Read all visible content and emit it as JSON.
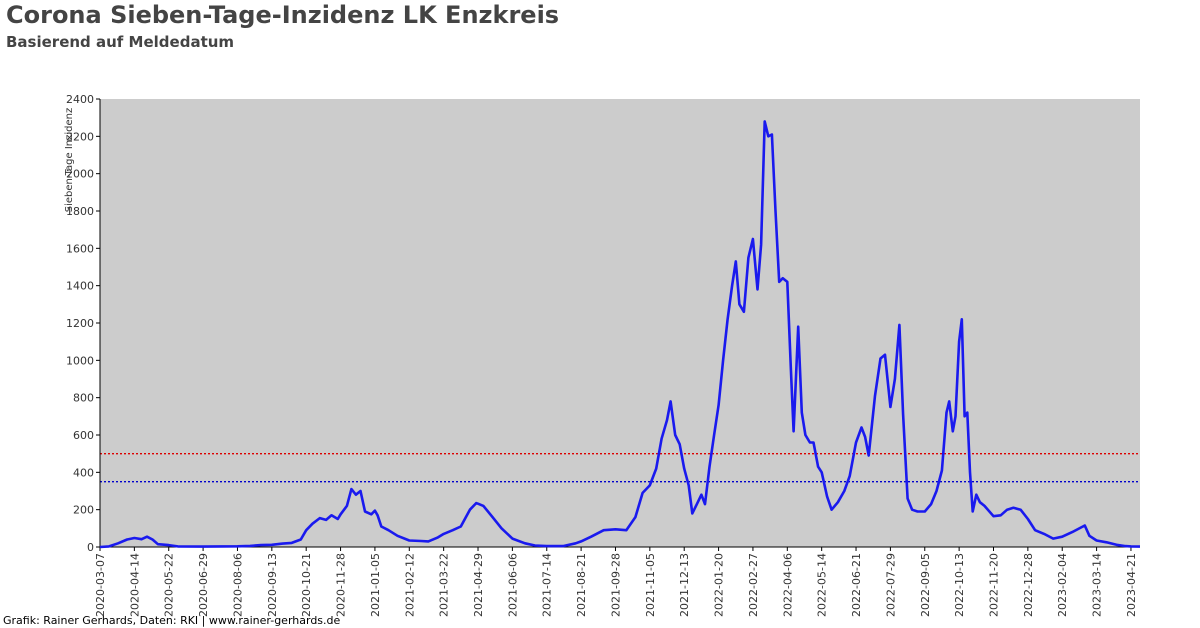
{
  "title": "Corona Sieben-Tage-Inzidenz LK Enzkreis",
  "subtitle": "Basierend auf Meldedatum",
  "footer": "Grafik: Rainer Gerhards, Daten: RKI | www.rainer-gerhards.de",
  "colors": {
    "plot_background": "#cccccc",
    "series": "#1a1aee",
    "threshold_red": "#dd0000",
    "threshold_blue": "#0000cc",
    "text": "#444444"
  },
  "chart_data": {
    "type": "line",
    "title": "Corona Sieben-Tage-Inzidenz LK Enzkreis",
    "subtitle": "Basierend auf Meldedatum",
    "xlabel": "",
    "ylabel": "Sieben-Tage Inzidenz",
    "ylim": [
      0,
      2400
    ],
    "yticks": [
      0,
      200,
      400,
      600,
      800,
      1000,
      1200,
      1400,
      1600,
      1800,
      2000,
      2200,
      2400
    ],
    "xlim": [
      "2020-03-07",
      "2023-05-01"
    ],
    "xticks": [
      "2020-03-07",
      "2020-04-14",
      "2020-05-22",
      "2020-06-29",
      "2020-08-06",
      "2020-09-13",
      "2020-10-21",
      "2020-11-28",
      "2021-01-05",
      "2021-02-12",
      "2021-03-22",
      "2021-04-29",
      "2021-06-06",
      "2021-07-14",
      "2021-08-21",
      "2021-09-28",
      "2021-11-05",
      "2021-12-13",
      "2022-01-20",
      "2022-02-27",
      "2022-04-06",
      "2022-05-14",
      "2022-06-21",
      "2022-07-29",
      "2022-09-05",
      "2022-10-13",
      "2022-11-20",
      "2022-12-28",
      "2023-02-04",
      "2023-03-14",
      "2023-04-21"
    ],
    "grid": false,
    "reference_lines": [
      {
        "y": 500,
        "color": "#dd0000"
      },
      {
        "y": 350,
        "color": "#0000cc"
      }
    ],
    "series": [
      {
        "points": [
          [
            "2020-03-07",
            0
          ],
          [
            "2020-03-17",
            3
          ],
          [
            "2020-03-27",
            20
          ],
          [
            "2020-04-06",
            40
          ],
          [
            "2020-04-14",
            48
          ],
          [
            "2020-04-22",
            42
          ],
          [
            "2020-04-28",
            55
          ],
          [
            "2020-05-04",
            40
          ],
          [
            "2020-05-10",
            15
          ],
          [
            "2020-05-22",
            10
          ],
          [
            "2020-06-01",
            3
          ],
          [
            "2020-06-29",
            2
          ],
          [
            "2020-07-20",
            3
          ],
          [
            "2020-08-06",
            4
          ],
          [
            "2020-08-20",
            6
          ],
          [
            "2020-09-01",
            10
          ],
          [
            "2020-09-13",
            12
          ],
          [
            "2020-09-25",
            18
          ],
          [
            "2020-10-05",
            22
          ],
          [
            "2020-10-15",
            40
          ],
          [
            "2020-10-21",
            90
          ],
          [
            "2020-10-28",
            125
          ],
          [
            "2020-11-05",
            155
          ],
          [
            "2020-11-12",
            145
          ],
          [
            "2020-11-18",
            170
          ],
          [
            "2020-11-25",
            150
          ],
          [
            "2020-11-28",
            175
          ],
          [
            "2020-12-05",
            220
          ],
          [
            "2020-12-10",
            310
          ],
          [
            "2020-12-15",
            280
          ],
          [
            "2020-12-20",
            300
          ],
          [
            "2020-12-25",
            190
          ],
          [
            "2021-01-01",
            175
          ],
          [
            "2021-01-05",
            195
          ],
          [
            "2021-01-08",
            170
          ],
          [
            "2021-01-12",
            110
          ],
          [
            "2021-01-20",
            90
          ],
          [
            "2021-01-30",
            60
          ],
          [
            "2021-02-12",
            35
          ],
          [
            "2021-02-25",
            32
          ],
          [
            "2021-03-05",
            30
          ],
          [
            "2021-03-15",
            50
          ],
          [
            "2021-03-22",
            70
          ],
          [
            "2021-04-01",
            90
          ],
          [
            "2021-04-10",
            110
          ],
          [
            "2021-04-20",
            200
          ],
          [
            "2021-04-27",
            235
          ],
          [
            "2021-04-29",
            232
          ],
          [
            "2021-05-05",
            220
          ],
          [
            "2021-05-15",
            160
          ],
          [
            "2021-05-25",
            100
          ],
          [
            "2021-06-06",
            45
          ],
          [
            "2021-06-20",
            20
          ],
          [
            "2021-07-01",
            8
          ],
          [
            "2021-07-14",
            5
          ],
          [
            "2021-08-01",
            5
          ],
          [
            "2021-08-15",
            20
          ],
          [
            "2021-08-21",
            30
          ],
          [
            "2021-09-01",
            55
          ],
          [
            "2021-09-15",
            90
          ],
          [
            "2021-09-28",
            95
          ],
          [
            "2021-10-10",
            90
          ],
          [
            "2021-10-20",
            160
          ],
          [
            "2021-10-28",
            290
          ],
          [
            "2021-11-05",
            330
          ],
          [
            "2021-11-12",
            420
          ],
          [
            "2021-11-18",
            580
          ],
          [
            "2021-11-24",
            680
          ],
          [
            "2021-11-28",
            780
          ],
          [
            "2021-12-03",
            600
          ],
          [
            "2021-12-08",
            550
          ],
          [
            "2021-12-13",
            420
          ],
          [
            "2021-12-18",
            330
          ],
          [
            "2021-12-22",
            180
          ],
          [
            "2021-12-27",
            230
          ],
          [
            "2022-01-01",
            280
          ],
          [
            "2022-01-05",
            230
          ],
          [
            "2022-01-10",
            430
          ],
          [
            "2022-01-15",
            600
          ],
          [
            "2022-01-20",
            760
          ],
          [
            "2022-01-25",
            1000
          ],
          [
            "2022-01-30",
            1220
          ],
          [
            "2022-02-04",
            1400
          ],
          [
            "2022-02-08",
            1530
          ],
          [
            "2022-02-12",
            1300
          ],
          [
            "2022-02-17",
            1260
          ],
          [
            "2022-02-22",
            1550
          ],
          [
            "2022-02-27",
            1650
          ],
          [
            "2022-03-04",
            1380
          ],
          [
            "2022-03-08",
            1620
          ],
          [
            "2022-03-12",
            2280
          ],
          [
            "2022-03-16",
            2200
          ],
          [
            "2022-03-20",
            2210
          ],
          [
            "2022-03-24",
            1800
          ],
          [
            "2022-03-28",
            1420
          ],
          [
            "2022-04-01",
            1440
          ],
          [
            "2022-04-06",
            1420
          ],
          [
            "2022-04-10",
            950
          ],
          [
            "2022-04-13",
            620
          ],
          [
            "2022-04-18",
            1180
          ],
          [
            "2022-04-22",
            720
          ],
          [
            "2022-04-26",
            600
          ],
          [
            "2022-05-01",
            560
          ],
          [
            "2022-05-05",
            560
          ],
          [
            "2022-05-10",
            430
          ],
          [
            "2022-05-14",
            400
          ],
          [
            "2022-05-20",
            270
          ],
          [
            "2022-05-25",
            200
          ],
          [
            "2022-06-01",
            240
          ],
          [
            "2022-06-08",
            300
          ],
          [
            "2022-06-14",
            380
          ],
          [
            "2022-06-21",
            560
          ],
          [
            "2022-06-27",
            640
          ],
          [
            "2022-07-01",
            590
          ],
          [
            "2022-07-05",
            490
          ],
          [
            "2022-07-12",
            810
          ],
          [
            "2022-07-18",
            1010
          ],
          [
            "2022-07-23",
            1030
          ],
          [
            "2022-07-29",
            750
          ],
          [
            "2022-08-03",
            900
          ],
          [
            "2022-08-08",
            1190
          ],
          [
            "2022-08-12",
            710
          ],
          [
            "2022-08-17",
            260
          ],
          [
            "2022-08-22",
            200
          ],
          [
            "2022-08-28",
            190
          ],
          [
            "2022-09-05",
            190
          ],
          [
            "2022-09-12",
            230
          ],
          [
            "2022-09-18",
            300
          ],
          [
            "2022-09-24",
            410
          ],
          [
            "2022-09-29",
            720
          ],
          [
            "2022-10-02",
            780
          ],
          [
            "2022-10-06",
            620
          ],
          [
            "2022-10-09",
            700
          ],
          [
            "2022-10-13",
            1100
          ],
          [
            "2022-10-16",
            1220
          ],
          [
            "2022-10-19",
            700
          ],
          [
            "2022-10-22",
            720
          ],
          [
            "2022-10-25",
            400
          ],
          [
            "2022-10-28",
            190
          ],
          [
            "2022-11-01",
            280
          ],
          [
            "2022-11-05",
            240
          ],
          [
            "2022-11-10",
            220
          ],
          [
            "2022-11-20",
            165
          ],
          [
            "2022-11-28",
            170
          ],
          [
            "2022-12-05",
            200
          ],
          [
            "2022-12-12",
            210
          ],
          [
            "2022-12-20",
            200
          ],
          [
            "2022-12-28",
            150
          ],
          [
            "2023-01-05",
            90
          ],
          [
            "2023-01-15",
            70
          ],
          [
            "2023-01-25",
            45
          ],
          [
            "2023-02-04",
            55
          ],
          [
            "2023-02-15",
            80
          ],
          [
            "2023-02-25",
            105
          ],
          [
            "2023-03-01",
            115
          ],
          [
            "2023-03-06",
            60
          ],
          [
            "2023-03-14",
            35
          ],
          [
            "2023-03-25",
            25
          ],
          [
            "2023-04-05",
            12
          ],
          [
            "2023-04-15",
            5
          ],
          [
            "2023-04-21",
            3
          ],
          [
            "2023-05-01",
            2
          ]
        ]
      }
    ]
  }
}
